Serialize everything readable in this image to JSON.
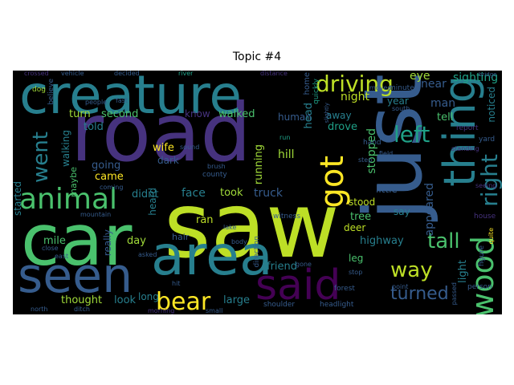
{
  "title": "Topic #4",
  "words": {
    "road": "road",
    "saw": "saw",
    "just": "just",
    "car": "car",
    "creature": "creature",
    "area": "area",
    "seen": "seen",
    "said": "said",
    "thing": "thing",
    "animal": "animal",
    "driving": "driving",
    "went": "went",
    "got": "got",
    "wood": "wood",
    "right": "right",
    "left": "left",
    "bear": "bear",
    "way": "way",
    "tall": "tall",
    "turned": "turned",
    "night": "night",
    "eye": "eye",
    "sighting": "sighting",
    "man": "man",
    "near": "near",
    "year": "year",
    "noticed": "noticed",
    "tell": "tell",
    "turn": "turn",
    "second": "second",
    "know": "know",
    "walked": "walked",
    "human": "human",
    "head": "head",
    "away": "away",
    "drove": "drove",
    "stopped": "stopped",
    "told": "told",
    "wife": "wife",
    "going": "going",
    "hill": "hill",
    "dark": "dark",
    "came": "came",
    "didnt": "didnt",
    "face": "face",
    "took": "took",
    "truck": "truck",
    "tree": "tree",
    "appeared": "appeared",
    "stood": "stood",
    "little": "little",
    "say": "say",
    "deer": "deer",
    "ran": "ran",
    "day": "day",
    "friend": "friend",
    "highway": "highway",
    "leg": "leg",
    "light": "light",
    "thought": "thought",
    "look": "look",
    "long": "long",
    "large": "large",
    "mile": "mile",
    "started": "started",
    "walking": "walking",
    "maybe": "maybe",
    "running": "running",
    "heard": "heard",
    "really": "really",
    "hair": "hair",
    "area2": "area",
    "shoulder": "shoulder",
    "headlight": "headlight",
    "north": "north",
    "body": "body",
    "point": "point",
    "crossed": "crossed",
    "vehicle": "vehicle",
    "decided": "decided",
    "river": "river",
    "distance": "distance",
    "minute": "minute",
    "moved": "moved",
    "people": "people",
    "believe": "believe",
    "dog": "dog",
    "home": "home",
    "quickly": "quickly",
    "report": "report",
    "yard": "yard",
    "hand": "hand",
    "field": "field",
    "house": "house",
    "figure": "figure",
    "person": "person",
    "forest": "forest",
    "south": "south",
    "step": "step",
    "county": "county",
    "witness": "witness",
    "sound": "sound",
    "brush": "brush",
    "lake": "lake",
    "mountain": "mountain",
    "morning": "morning",
    "small": "small",
    "ditch": "ditch",
    "direction": "direction",
    "asked": "asked",
    "close": "close",
    "east": "east",
    "coming": "coming",
    "gone": "gone",
    "run": "run",
    "stop": "stop",
    "seeing": "seeing",
    "standing": "standing",
    "hit": "hit",
    "slightly": "slightly",
    "passed": "passed",
    "quite": "quite",
    "fast": "fast",
    "bridge": "bridge"
  },
  "colors": {
    "purple": "#46327e",
    "darkpurple": "#440154",
    "blue": "#365c8d",
    "teal": "#277f8e",
    "green": "#1fa187",
    "lightgreen": "#4ac16d",
    "lime": "#a0da39",
    "yellow": "#fde725",
    "olive": "#bddf26"
  }
}
